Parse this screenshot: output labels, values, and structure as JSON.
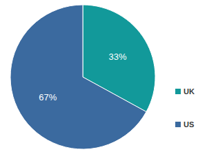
{
  "chart_data": {
    "type": "pie",
    "categories": [
      "UK",
      "US"
    ],
    "values": [
      33,
      67
    ],
    "value_labels": [
      "33%",
      "67%"
    ],
    "colors": [
      "#12999a",
      "#3b6a9f"
    ],
    "data_labels": true,
    "legend": "right"
  }
}
